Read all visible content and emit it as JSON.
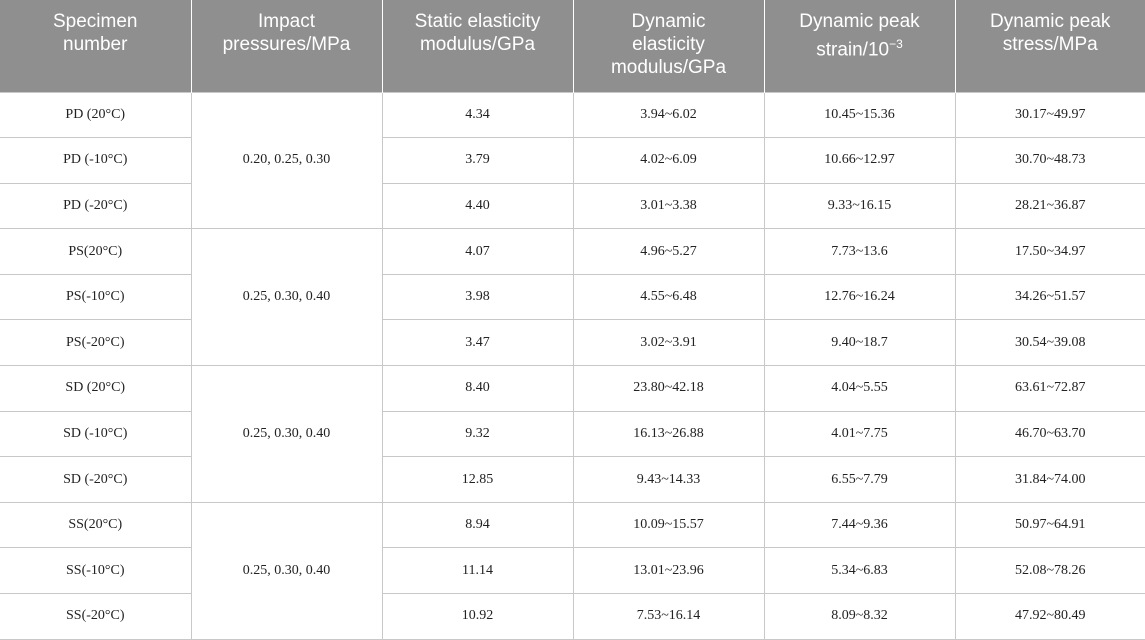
{
  "table": {
    "headers": [
      "Specimen\nnumber",
      "Impact\npressures/MPa",
      "Static elasticity\nmodulus/GPa",
      "Dynamic\nelasticity\nmodulus/GPa",
      "Dynamic peak\nstrain/10",
      "Dynamic peak\nstress/MPa"
    ],
    "strain_exponent": "−3",
    "groups": [
      {
        "pressures": "0.20, 0.25, 0.30",
        "rows": [
          [
            "PD (20°C)",
            "4.34",
            "3.94~6.02",
            "10.45~15.36",
            "30.17~49.97"
          ],
          [
            "PD (-10°C)",
            "3.79",
            "4.02~6.09",
            "10.66~12.97",
            "30.70~48.73"
          ],
          [
            "PD (-20°C)",
            "4.40",
            "3.01~3.38",
            "9.33~16.15",
            "28.21~36.87"
          ]
        ]
      },
      {
        "pressures": "0.25, 0.30, 0.40",
        "rows": [
          [
            "PS(20°C)",
            "4.07",
            "4.96~5.27",
            "7.73~13.6",
            "17.50~34.97"
          ],
          [
            "PS(-10°C)",
            "3.98",
            "4.55~6.48",
            "12.76~16.24",
            "34.26~51.57"
          ],
          [
            "PS(-20°C)",
            "3.47",
            "3.02~3.91",
            "9.40~18.7",
            "30.54~39.08"
          ]
        ]
      },
      {
        "pressures": "0.25, 0.30, 0.40",
        "rows": [
          [
            "SD (20°C)",
            "8.40",
            "23.80~42.18",
            "4.04~5.55",
            "63.61~72.87"
          ],
          [
            "SD (-10°C)",
            "9.32",
            "16.13~26.88",
            "4.01~7.75",
            "46.70~63.70"
          ],
          [
            "SD (-20°C)",
            "12.85",
            "9.43~14.33",
            "6.55~7.79",
            "31.84~74.00"
          ]
        ]
      },
      {
        "pressures": "0.25, 0.30, 0.40",
        "rows": [
          [
            "SS(20°C)",
            "8.94",
            "10.09~15.57",
            "7.44~9.36",
            "50.97~64.91"
          ],
          [
            "SS(-10°C)",
            "11.14",
            "13.01~23.96",
            "5.34~6.83",
            "52.08~78.26"
          ],
          [
            "SS(-20°C)",
            "10.92",
            "7.53~16.14",
            "8.09~8.32",
            "47.92~80.49"
          ]
        ]
      }
    ]
  }
}
